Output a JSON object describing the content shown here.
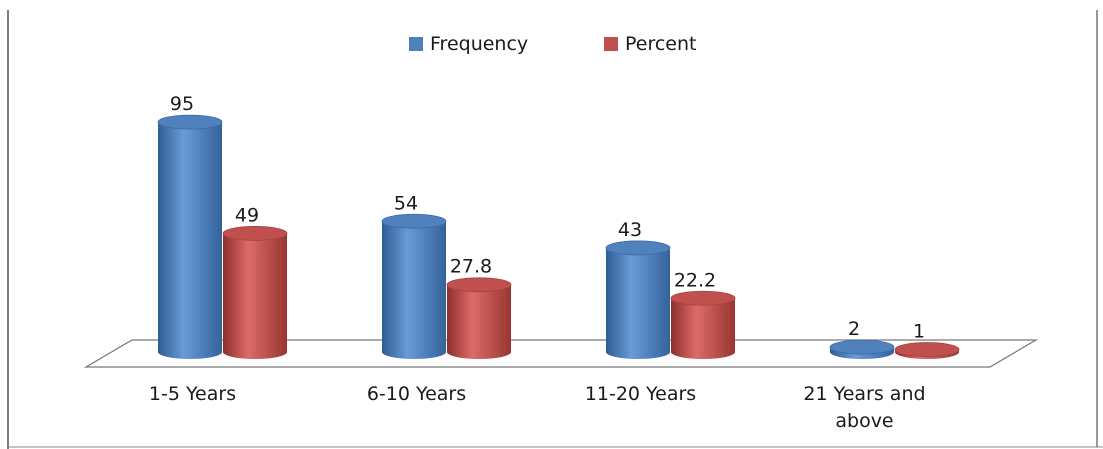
{
  "chart_data": {
    "type": "bar",
    "style": "3d-cylinder",
    "categories": [
      "1-5 Years",
      "6-10 Years",
      "11-20 Years",
      "21 Years and above"
    ],
    "category_label_lines": [
      [
        "1-5 Years"
      ],
      [
        "6-10 Years"
      ],
      [
        "11-20 Years"
      ],
      [
        "21 Years and",
        "above"
      ]
    ],
    "series": [
      {
        "name": "Frequency",
        "values": [
          95,
          54,
          43,
          2
        ],
        "labels": [
          "95",
          "54",
          "43",
          "2"
        ],
        "color": "#4f81bd"
      },
      {
        "name": "Percent",
        "values": [
          49,
          27.8,
          22.2,
          1
        ],
        "labels": [
          "49",
          "27.8",
          "22.2",
          "1"
        ],
        "color": "#c0504d"
      }
    ],
    "title": "",
    "xlabel": "",
    "ylabel": "",
    "ylim": [
      0,
      100
    ],
    "grid": false,
    "legend": "top-center"
  }
}
